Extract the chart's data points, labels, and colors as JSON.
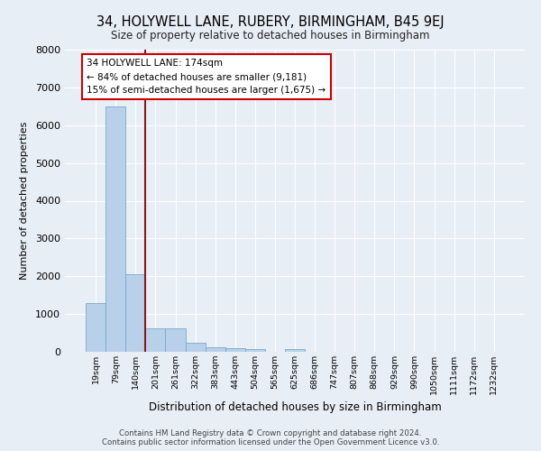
{
  "title": "34, HOLYWELL LANE, RUBERY, BIRMINGHAM, B45 9EJ",
  "subtitle": "Size of property relative to detached houses in Birmingham",
  "xlabel": "Distribution of detached houses by size in Birmingham",
  "ylabel": "Number of detached properties",
  "footer_line1": "Contains HM Land Registry data © Crown copyright and database right 2024.",
  "footer_line2": "Contains public sector information licensed under the Open Government Licence v3.0.",
  "bar_labels": [
    "19sqm",
    "79sqm",
    "140sqm",
    "201sqm",
    "261sqm",
    "322sqm",
    "383sqm",
    "443sqm",
    "504sqm",
    "565sqm",
    "625sqm",
    "686sqm",
    "747sqm",
    "807sqm",
    "868sqm",
    "929sqm",
    "990sqm",
    "1050sqm",
    "1111sqm",
    "1172sqm",
    "1232sqm"
  ],
  "bar_values": [
    1290,
    6500,
    2060,
    620,
    620,
    250,
    130,
    100,
    60,
    0,
    80,
    0,
    0,
    0,
    0,
    0,
    0,
    0,
    0,
    0,
    0
  ],
  "bar_color": "#b8d0ea",
  "bar_edge_color": "#7aaac8",
  "property_line_x": 2.5,
  "annotation_text_line1": "34 HOLYWELL LANE: 174sqm",
  "annotation_text_line2": "← 84% of detached houses are smaller (9,181)",
  "annotation_text_line3": "15% of semi-detached houses are larger (1,675) →",
  "annotation_box_color": "#ffffff",
  "annotation_border_color": "#cc0000",
  "vline_color": "#8b1a1a",
  "bg_color": "#e8eef6",
  "grid_color": "#ffffff",
  "ylim": [
    0,
    8000
  ],
  "yticks": [
    0,
    1000,
    2000,
    3000,
    4000,
    5000,
    6000,
    7000,
    8000
  ]
}
